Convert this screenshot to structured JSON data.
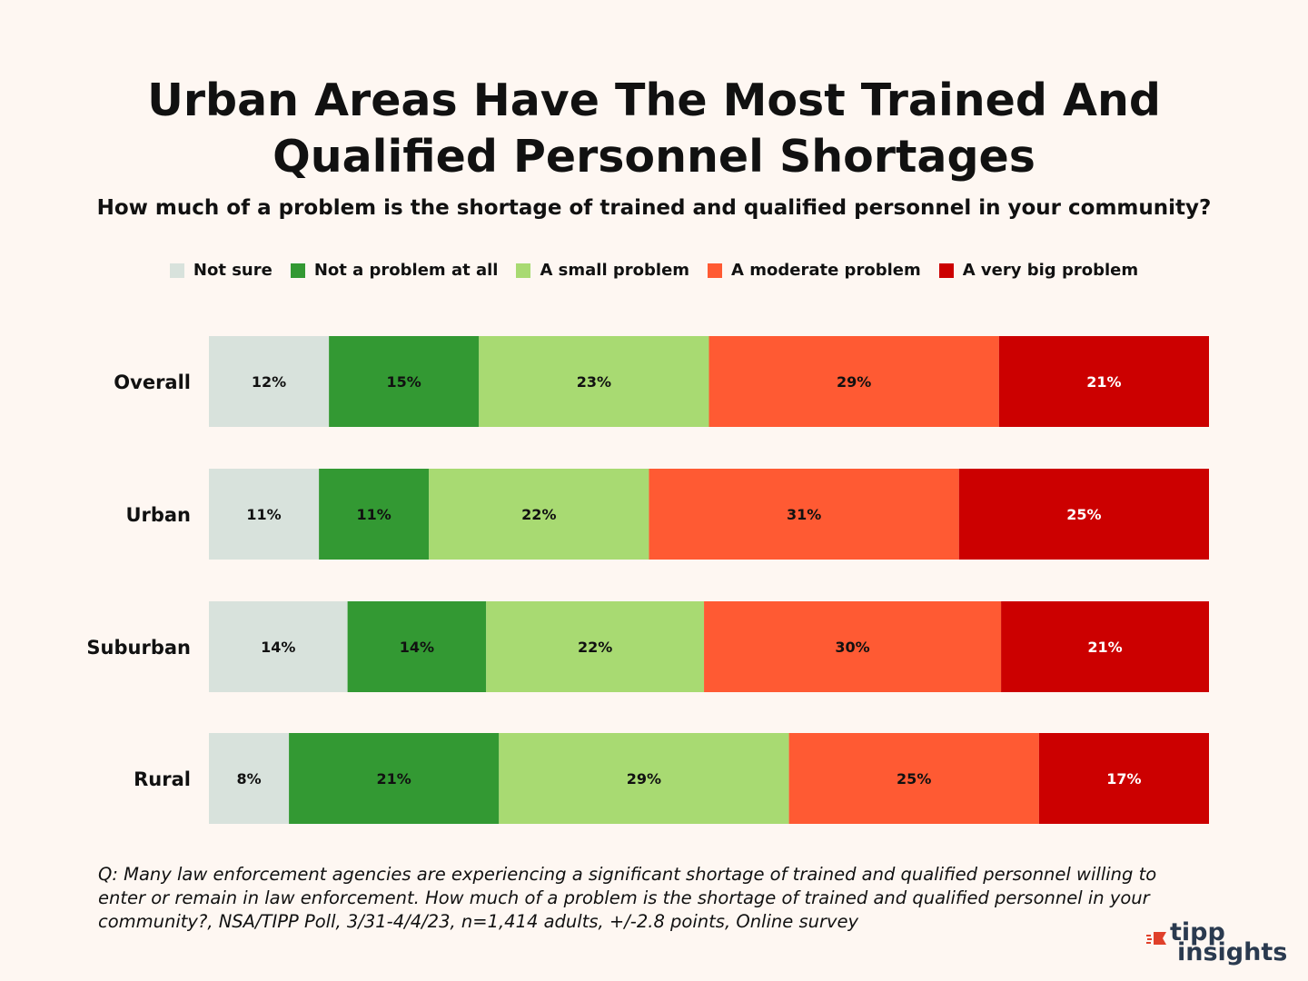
{
  "chart_data": {
    "type": "bar",
    "orientation": "horizontal-stacked-100",
    "title": "Urban Areas Have The Most Trained And Qualified Personnel Shortages",
    "subtitle": "How much of a problem is the shortage of trained and qualified personnel in your community?",
    "categories": [
      "Overall",
      "Urban",
      "Suburban",
      "Rural"
    ],
    "series": [
      {
        "name": "Not sure",
        "color": "#d8e2dc",
        "values": [
          12,
          11,
          14,
          8
        ],
        "labels": [
          "12%",
          "11%",
          "14%",
          "8%"
        ],
        "label_color": "#111111"
      },
      {
        "name": "Not a problem at all",
        "color": "#339933",
        "values": [
          15,
          11,
          14,
          21
        ],
        "labels": [
          "15%",
          "11%",
          "14%",
          "21%"
        ],
        "label_color": "#111111"
      },
      {
        "name": "A small problem",
        "color": "#a8da72",
        "values": [
          23,
          22,
          22,
          29
        ],
        "labels": [
          "23%",
          "22%",
          "22%",
          "29%"
        ],
        "label_color": "#111111"
      },
      {
        "name": "A moderate problem",
        "color": "#ff5a33",
        "values": [
          29,
          31,
          30,
          25
        ],
        "labels": [
          "29%",
          "31%",
          "30%",
          "25%"
        ],
        "label_color": "#111111"
      },
      {
        "name": "A very big problem",
        "color": "#cc0000",
        "values": [
          21,
          25,
          21,
          17
        ],
        "labels": [
          "21%",
          "25%",
          "21%",
          "17%"
        ],
        "label_color": "#ffffff"
      }
    ],
    "legend_position": "top",
    "xlim": [
      0,
      100
    ]
  },
  "footnote": "Q: Many law enforcement agencies are experiencing a significant shortage of trained and qualified personnel willing to enter or remain in law enforcement. How much of a problem is the shortage of trained and qualified personnel in your community?, NSA/TIPP Poll, 3/31-4/4/23, n=1,414 adults, +/-2.8 points, Online survey",
  "logo": {
    "line1": "tipp",
    "line2": "insights",
    "accent": "#e0402a",
    "color": "#2a3a4f"
  }
}
